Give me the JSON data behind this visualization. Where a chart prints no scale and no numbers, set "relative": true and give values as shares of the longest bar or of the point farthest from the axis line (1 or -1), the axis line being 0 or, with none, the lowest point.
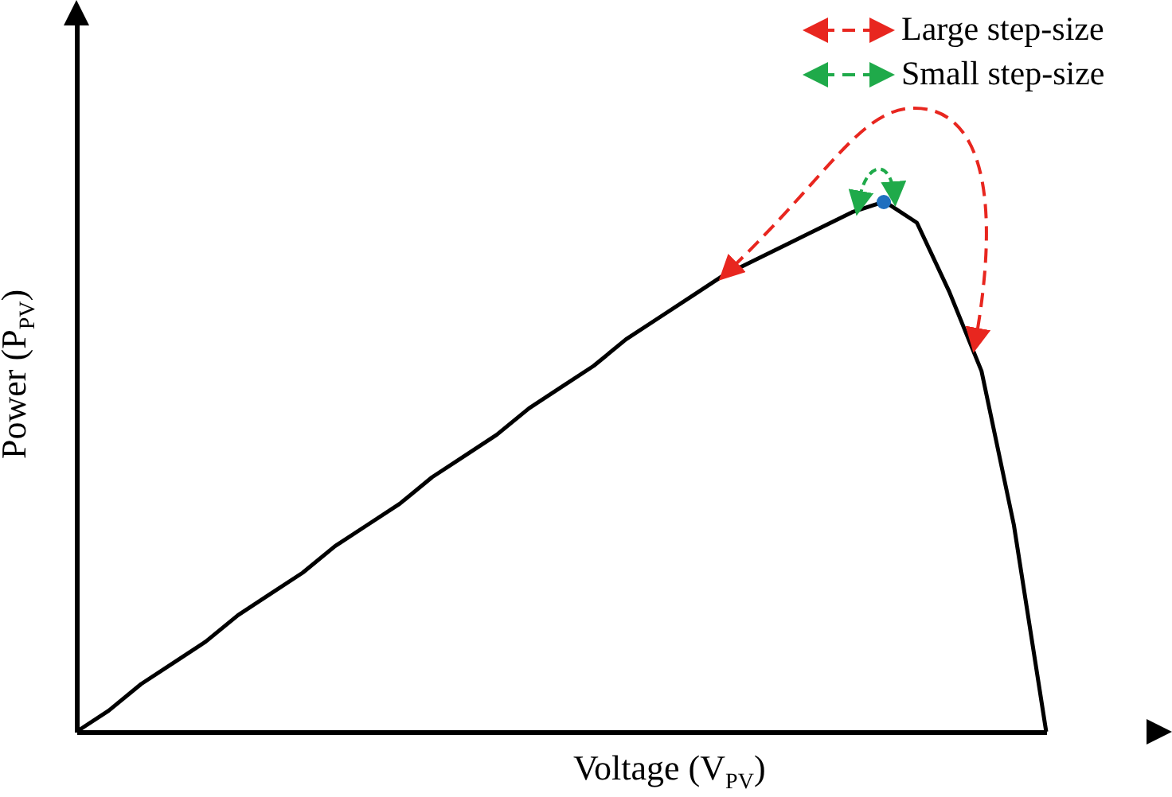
{
  "chart_data": {
    "type": "line",
    "relative": true,
    "xlabel": "Voltage (V$_{PV}$)",
    "ylabel": "Power (P$_{PV}$)",
    "categories": [
      null,
      null,
      null,
      null,
      null,
      null,
      null,
      null,
      null,
      null,
      null,
      null,
      null,
      null,
      null,
      null,
      null,
      null,
      null,
      null,
      null,
      null,
      null,
      null,
      null,
      null,
      null,
      null,
      null,
      null,
      null
    ],
    "series": [
      {
        "color": "#000000",
        "values": [
          0,
          0.04,
          0.09,
          0.13,
          0.17,
          0.22,
          0.26,
          0.3,
          0.35,
          0.39,
          0.43,
          0.48,
          0.52,
          0.56,
          0.61,
          0.65,
          0.69,
          0.74,
          0.78,
          0.82,
          0.86,
          0.89,
          0.92,
          0.95,
          0.98,
          1,
          0.96,
          0.83,
          0.68,
          0.39,
          0
        ]
      }
    ],
    "annotations": [
      "Large step-size",
      "Small step-size"
    ]
  }
}
